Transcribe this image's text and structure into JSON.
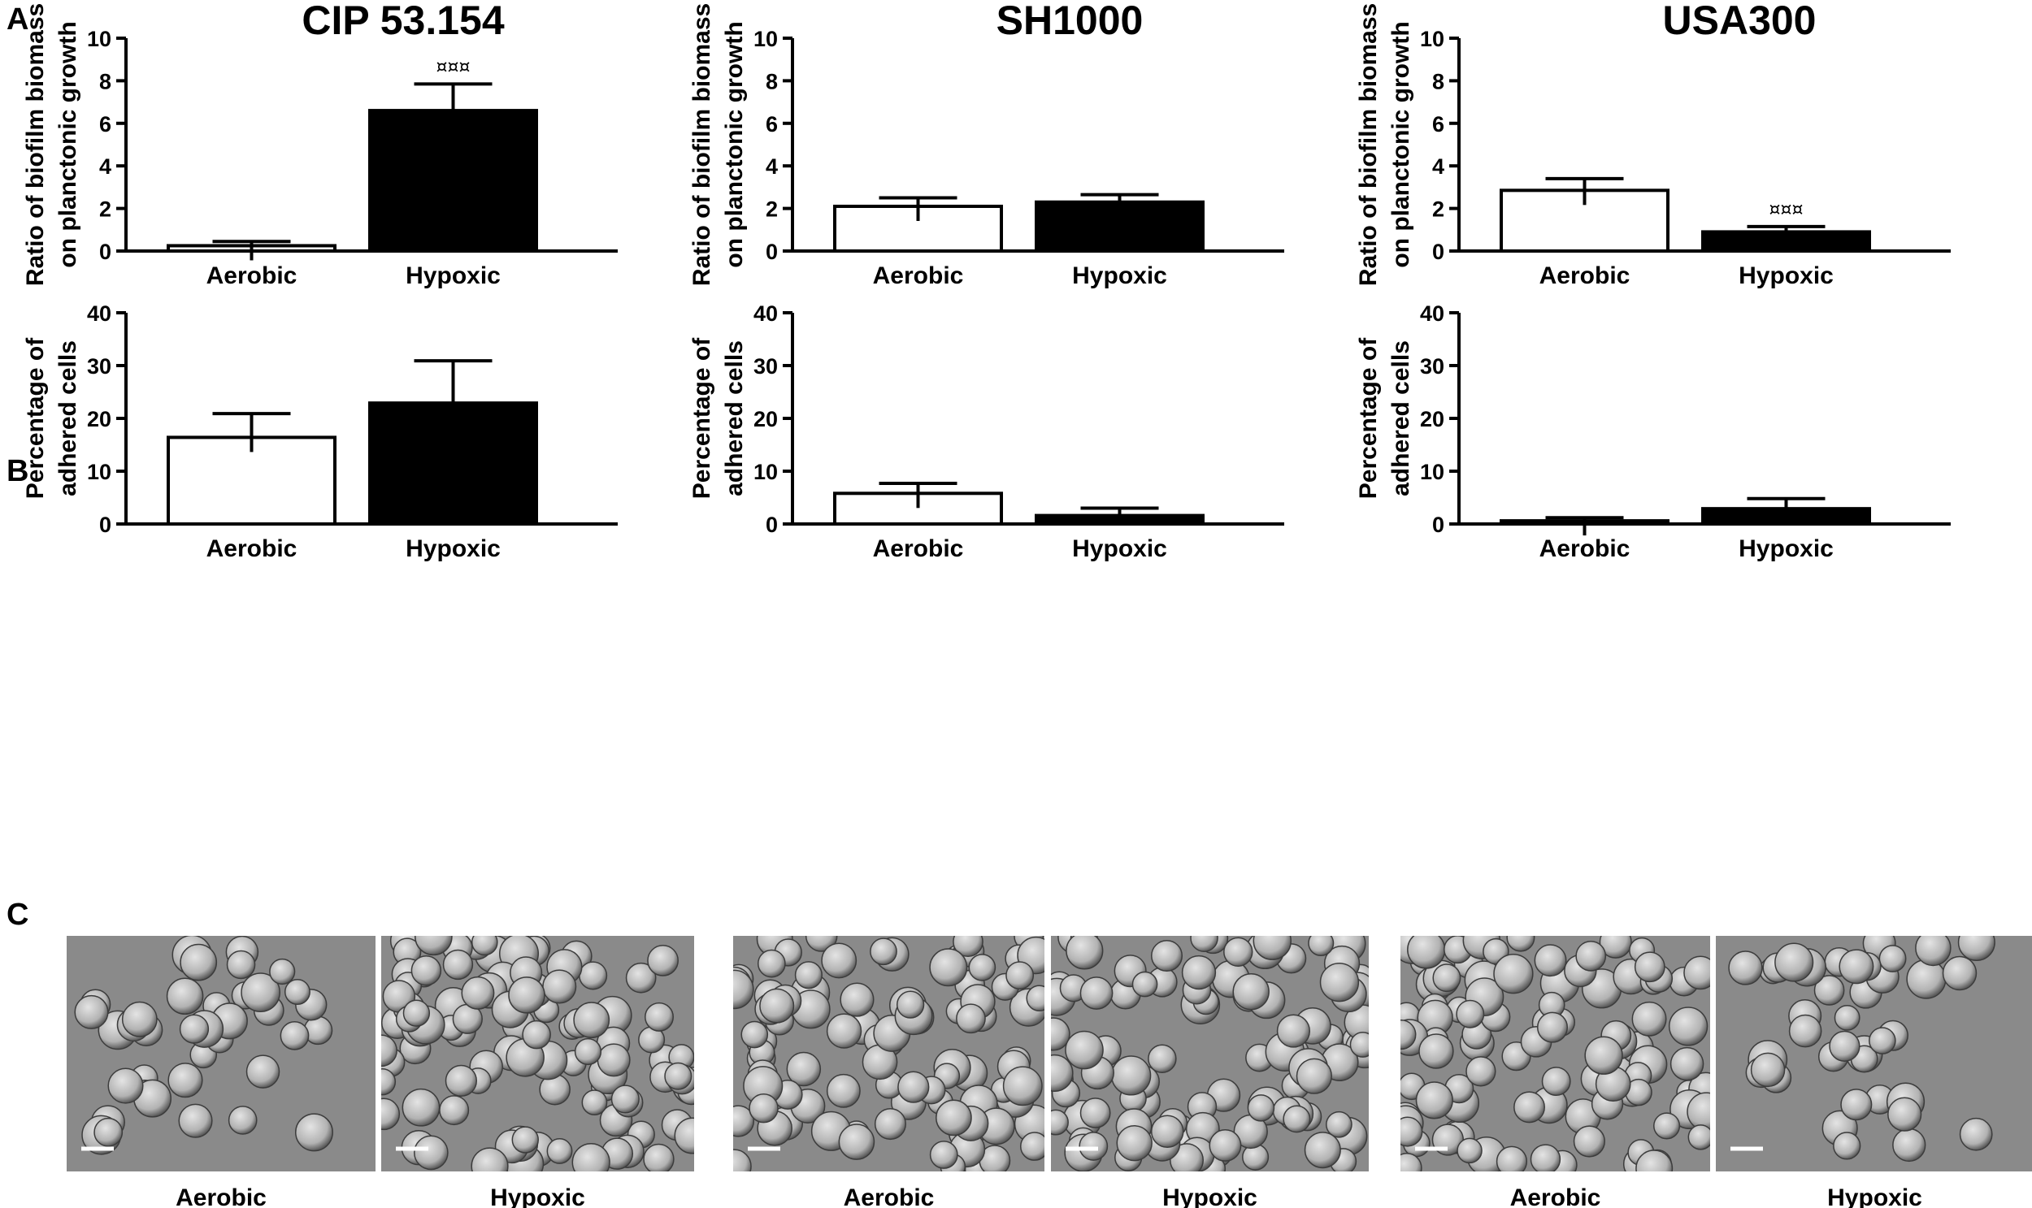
{
  "panel_letters": {
    "a": "A",
    "b": "B",
    "c": "C"
  },
  "strains": [
    "CIP 53.154",
    "SH1000",
    "USA300"
  ],
  "colors": {
    "aerobic": "#ffffff",
    "hypoxic": "#000000",
    "axis": "#000000",
    "sem_bg": "#8a8a8a"
  },
  "chart_data": [
    {
      "type": "bar",
      "panel": "A",
      "strain": "CIP 53.154",
      "ylabel": [
        "Ratio of biofilm biomass",
        "on planctonic growth"
      ],
      "ylim": [
        0,
        10
      ],
      "yticks": [
        0,
        2,
        4,
        6,
        8,
        10
      ],
      "categories": [
        "Aerobic",
        "Hypoxic"
      ],
      "values": [
        0.25,
        6.6
      ],
      "errors": [
        0.2,
        1.25
      ],
      "annotations": [
        "",
        "¤¤¤"
      ]
    },
    {
      "type": "bar",
      "panel": "A",
      "strain": "SH1000",
      "ylabel": [
        "Ratio of biofilm biomass",
        "on planctonic growth"
      ],
      "ylim": [
        0,
        10
      ],
      "yticks": [
        0,
        2,
        4,
        6,
        8,
        10
      ],
      "categories": [
        "Aerobic",
        "Hypoxic"
      ],
      "values": [
        2.1,
        2.3
      ],
      "errors": [
        0.4,
        0.35
      ],
      "annotations": [
        "",
        ""
      ]
    },
    {
      "type": "bar",
      "panel": "A",
      "strain": "USA300",
      "ylabel": [
        "Ratio of biofilm biomass",
        "on planctonic growth"
      ],
      "ylim": [
        0,
        10
      ],
      "yticks": [
        0,
        2,
        4,
        6,
        8,
        10
      ],
      "categories": [
        "Aerobic",
        "Hypoxic"
      ],
      "values": [
        2.85,
        0.9
      ],
      "errors": [
        0.55,
        0.25
      ],
      "annotations": [
        "",
        "¤¤¤"
      ]
    },
    {
      "type": "bar",
      "panel": "B",
      "strain": "CIP 53.154",
      "ylabel": [
        "Percentage of",
        "adhered cells"
      ],
      "ylim": [
        0,
        40
      ],
      "yticks": [
        0,
        10,
        20,
        30,
        40
      ],
      "categories": [
        "Aerobic",
        "Hypoxic"
      ],
      "values": [
        16.4,
        22.9
      ],
      "errors": [
        4.5,
        8.0
      ],
      "annotations": [
        "",
        ""
      ]
    },
    {
      "type": "bar",
      "panel": "B",
      "strain": "SH1000",
      "ylabel": [
        "Percentage of",
        "adhered cells"
      ],
      "ylim": [
        0,
        40
      ],
      "yticks": [
        0,
        10,
        20,
        30,
        40
      ],
      "categories": [
        "Aerobic",
        "Hypoxic"
      ],
      "values": [
        5.8,
        1.6
      ],
      "errors": [
        1.9,
        1.4
      ],
      "annotations": [
        "",
        ""
      ]
    },
    {
      "type": "bar",
      "panel": "B",
      "strain": "USA300",
      "ylabel": [
        "Percentage of",
        "adhered cells"
      ],
      "ylim": [
        0,
        40
      ],
      "yticks": [
        0,
        10,
        20,
        30,
        40
      ],
      "categories": [
        "Aerobic",
        "Hypoxic"
      ],
      "values": [
        0.6,
        2.9
      ],
      "errors": [
        0.6,
        1.9
      ],
      "annotations": [
        "",
        ""
      ]
    }
  ],
  "micrographs": [
    {
      "strain": "CIP 53.154",
      "condition": "Aerobic",
      "density": "clustered"
    },
    {
      "strain": "CIP 53.154",
      "condition": "Hypoxic",
      "density": "dense"
    },
    {
      "strain": "SH1000",
      "condition": "Aerobic",
      "density": "dense"
    },
    {
      "strain": "SH1000",
      "condition": "Hypoxic",
      "density": "dense"
    },
    {
      "strain": "USA300",
      "condition": "Aerobic",
      "density": "dense"
    },
    {
      "strain": "USA300",
      "condition": "Hypoxic",
      "density": "clustered"
    }
  ]
}
